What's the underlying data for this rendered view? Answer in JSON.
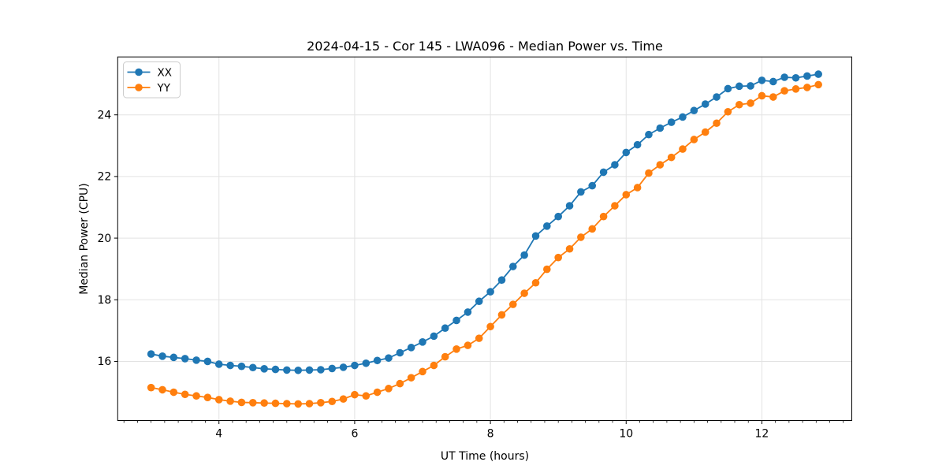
{
  "page": {
    "background": "#ffffff"
  },
  "chart_data": {
    "type": "line",
    "title": "2024-04-15 - Cor 145 - LWA096 - Median Power vs. Time",
    "xlabel": "UT Time (hours)",
    "ylabel": "Median Power (CPU)",
    "xlim": [
      2.508,
      13.325
    ],
    "ylim": [
      14.08,
      25.88
    ],
    "x_ticks": [
      4,
      6,
      8,
      10,
      12
    ],
    "x_minor_tick_step": 0.2,
    "y_ticks": [
      16,
      18,
      20,
      22,
      24
    ],
    "grid": true,
    "legend": {
      "position": "upper left",
      "entries": [
        "XX",
        "YY"
      ]
    },
    "style": {
      "grid_color": "#e3e3e3",
      "axis_color": "#000000",
      "text_color": "#000000",
      "legend_border": "#cccccc",
      "series_colors": {
        "XX": "#1f77b4",
        "YY": "#ff7f0e"
      },
      "marker_size": 4.8,
      "line_width": 1.8
    },
    "series": [
      {
        "name": "XX",
        "color": "#1f77b4",
        "x": [
          3.0,
          3.167,
          3.333,
          3.5,
          3.667,
          3.833,
          4.0,
          4.167,
          4.333,
          4.5,
          4.667,
          4.833,
          5.0,
          5.167,
          5.333,
          5.5,
          5.667,
          5.833,
          6.0,
          6.167,
          6.333,
          6.5,
          6.667,
          6.833,
          7.0,
          7.167,
          7.333,
          7.5,
          7.667,
          7.833,
          8.0,
          8.167,
          8.333,
          8.5,
          8.667,
          8.833,
          9.0,
          9.167,
          9.333,
          9.5,
          9.667,
          9.833,
          10.0,
          10.167,
          10.333,
          10.5,
          10.667,
          10.833,
          11.0,
          11.167,
          11.333,
          11.5,
          11.667,
          11.833,
          12.0,
          12.167,
          12.333,
          12.5,
          12.667,
          12.833
        ],
        "y": [
          16.24,
          16.17,
          16.13,
          16.09,
          16.04,
          16.0,
          15.91,
          15.87,
          15.84,
          15.8,
          15.76,
          15.74,
          15.72,
          15.71,
          15.72,
          15.73,
          15.77,
          15.81,
          15.87,
          15.94,
          16.03,
          16.11,
          16.28,
          16.45,
          16.63,
          16.82,
          17.08,
          17.33,
          17.6,
          17.95,
          18.26,
          18.64,
          19.08,
          19.45,
          20.07,
          20.39,
          20.7,
          21.05,
          21.5,
          21.7,
          22.14,
          22.38,
          22.78,
          23.03,
          23.36,
          23.57,
          23.76,
          23.93,
          24.14,
          24.35,
          24.58,
          24.85,
          24.93,
          24.94,
          25.12,
          25.08,
          25.22,
          25.2,
          25.26,
          25.32
        ]
      },
      {
        "name": "YY",
        "color": "#ff7f0e",
        "x": [
          3.0,
          3.167,
          3.333,
          3.5,
          3.667,
          3.833,
          4.0,
          4.167,
          4.333,
          4.5,
          4.667,
          4.833,
          5.0,
          5.167,
          5.333,
          5.5,
          5.667,
          5.833,
          6.0,
          6.167,
          6.333,
          6.5,
          6.667,
          6.833,
          7.0,
          7.167,
          7.333,
          7.5,
          7.667,
          7.833,
          8.0,
          8.167,
          8.333,
          8.5,
          8.667,
          8.833,
          9.0,
          9.167,
          9.333,
          9.5,
          9.667,
          9.833,
          10.0,
          10.167,
          10.333,
          10.5,
          10.667,
          10.833,
          11.0,
          11.167,
          11.333,
          11.5,
          11.667,
          11.833,
          12.0,
          12.167,
          12.333,
          12.5,
          12.667,
          12.833
        ],
        "y": [
          15.15,
          15.08,
          15.0,
          14.93,
          14.88,
          14.83,
          14.76,
          14.71,
          14.67,
          14.66,
          14.65,
          14.64,
          14.63,
          14.62,
          14.63,
          14.66,
          14.7,
          14.78,
          14.92,
          14.88,
          15.0,
          15.12,
          15.28,
          15.47,
          15.67,
          15.87,
          16.15,
          16.4,
          16.52,
          16.75,
          17.13,
          17.51,
          17.85,
          18.21,
          18.55,
          18.99,
          19.37,
          19.65,
          20.03,
          20.3,
          20.7,
          21.05,
          21.41,
          21.64,
          22.11,
          22.38,
          22.62,
          22.89,
          23.2,
          23.44,
          23.73,
          24.1,
          24.33,
          24.38,
          24.62,
          24.58,
          24.78,
          24.84,
          24.89,
          24.98
        ]
      }
    ]
  }
}
